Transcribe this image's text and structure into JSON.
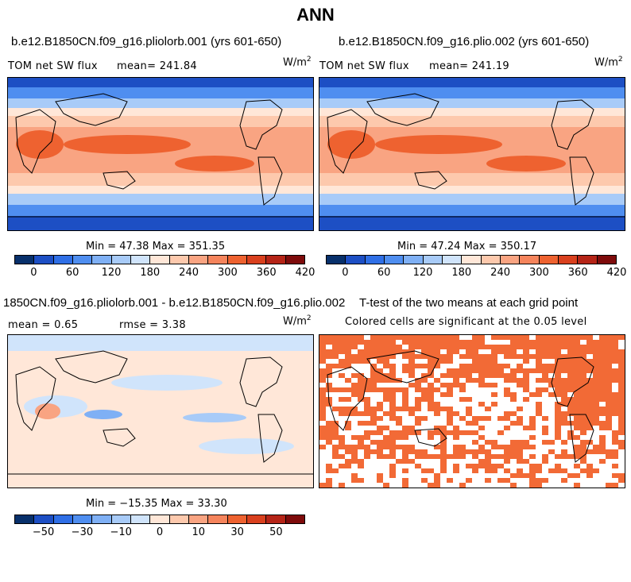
{
  "figure": {
    "title": "ANN"
  },
  "panels": [
    {
      "title": "b.e12.B1850CN.f09_g16.pliolorb.001 (yrs 601-650)",
      "label": "TOM net SW flux",
      "stat": "mean= 241.84",
      "units": "W/m",
      "units_exp": "2",
      "minmax": "Min =  47.38 Max = 351.35",
      "colorbar_ticks": [
        "0",
        "60",
        "120",
        "180",
        "240",
        "300",
        "360",
        "420"
      ]
    },
    {
      "title": "b.e12.B1850CN.f09_g16.plio.002 (yrs 601-650)",
      "label": "TOM net SW flux",
      "stat": "mean= 241.19",
      "units": "W/m",
      "units_exp": "2",
      "minmax": "Min =  47.24 Max = 350.17",
      "colorbar_ticks": [
        "0",
        "60",
        "120",
        "180",
        "240",
        "300",
        "360",
        "420"
      ]
    },
    {
      "title": "1850CN.f09_g16.pliolorb.001 - b.e12.B1850CN.f09_g16.plio.002",
      "stat_mean": "mean =   0.65",
      "stat_rmse": "rmse =   3.38",
      "units": "W/m",
      "units_exp": "2",
      "minmax": "Min = −15.35 Max =  33.30",
      "colorbar_ticks": [
        "−50",
        "−30",
        "−10",
        "0",
        "10",
        "30",
        "50"
      ]
    },
    {
      "title": "T-test of the two means at each grid point",
      "subtitle": "Colored cells are significant at the 0.05 level"
    }
  ],
  "colors": {
    "full_scale": [
      "#08306b",
      "#1d4fc4",
      "#2f6fe6",
      "#4f8ef0",
      "#7fb0f5",
      "#a8cbf8",
      "#d0e4fb",
      "#ffe7d8",
      "#fdc9ad",
      "#f9a482",
      "#f5845c",
      "#ee6230",
      "#d9401e",
      "#b52417",
      "#7e0b0b"
    ],
    "diff_scale": [
      "#08306b",
      "#1d4fc4",
      "#2f6fe6",
      "#4f8ef0",
      "#7fb0f5",
      "#a8cbf8",
      "#d0e4fb",
      "#ffe7d8",
      "#fdc9ad",
      "#f9a482",
      "#f5845c",
      "#ee6230",
      "#d9401e",
      "#b52417",
      "#7e0b0b"
    ],
    "significant": "#f26a36"
  }
}
